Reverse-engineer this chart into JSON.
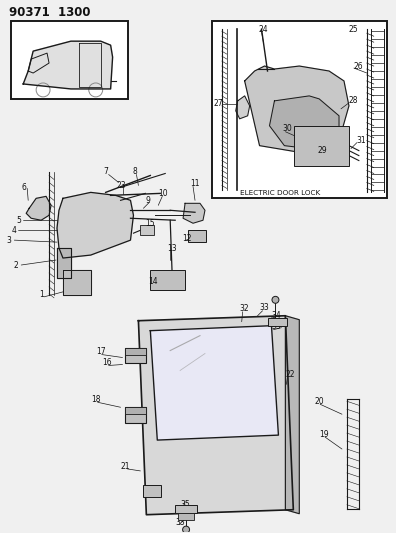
{
  "title": "90371  1300",
  "bg_color": "#f0f0f0",
  "line_color": "#1a1a1a",
  "text_color": "#111111",
  "title_fontsize": 8.5,
  "label_fontsize": 5.8,
  "electric_door_lock_label": "ELECTRIC DOOR LOCK"
}
